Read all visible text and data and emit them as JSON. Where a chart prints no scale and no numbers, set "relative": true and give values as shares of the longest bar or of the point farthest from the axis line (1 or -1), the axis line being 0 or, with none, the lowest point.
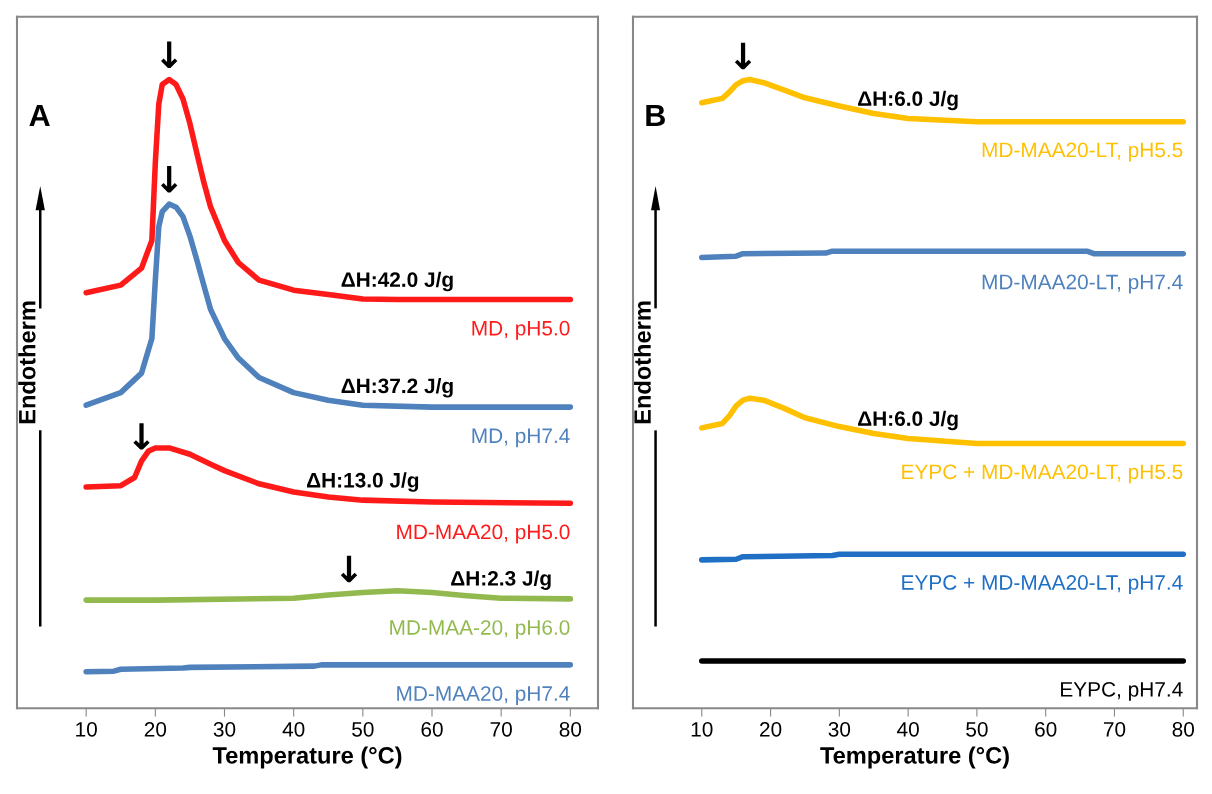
{
  "chart_data": [
    {
      "type": "line",
      "title": "A",
      "xlabel": "Temperature (°C)",
      "ylabel": "Endotherm",
      "relative": true,
      "xlim": [
        0,
        84
      ],
      "xticks": [
        10,
        20,
        30,
        40,
        50,
        60,
        70,
        80
      ],
      "tick_labels": "x",
      "legend": false,
      "grid": false,
      "marker": "none",
      "line_style": "solid",
      "series": [
        {
          "name": "MD, pH5.0",
          "color": "#ff1a1a",
          "x": [
            10,
            15,
            18,
            19.5,
            20,
            20.5,
            21,
            22,
            23,
            24,
            25,
            26,
            27,
            28,
            30,
            32,
            35,
            40,
            45,
            50,
            55,
            60,
            80
          ],
          "values": [
            0.661,
            0.673,
            0.7,
            0.744,
            0.868,
            0.961,
            0.992,
            1.0,
            0.992,
            0.969,
            0.93,
            0.883,
            0.837,
            0.797,
            0.744,
            0.709,
            0.681,
            0.665,
            0.658,
            0.651,
            0.65,
            0.65,
            0.65
          ]
        },
        {
          "name": "MD, pH7.4",
          "color": "#4f81bd",
          "x": [
            10,
            15,
            18,
            19.5,
            20,
            20.5,
            21,
            22,
            23,
            24,
            25,
            26,
            27,
            28,
            30,
            32,
            35,
            40,
            45,
            50,
            60,
            80
          ],
          "values": [
            0.482,
            0.502,
            0.533,
            0.588,
            0.681,
            0.766,
            0.79,
            0.802,
            0.797,
            0.782,
            0.751,
            0.713,
            0.673,
            0.634,
            0.588,
            0.557,
            0.526,
            0.502,
            0.49,
            0.482,
            0.479,
            0.479
          ]
        },
        {
          "name": "MD-MAA20, pH5.0",
          "color": "#ff1a1a",
          "x": [
            10,
            15,
            17,
            18,
            19,
            20,
            22,
            25,
            28,
            30,
            35,
            40,
            45,
            50,
            60,
            80
          ],
          "values": [
            0.352,
            0.354,
            0.367,
            0.393,
            0.409,
            0.414,
            0.414,
            0.404,
            0.388,
            0.378,
            0.357,
            0.344,
            0.336,
            0.331,
            0.328,
            0.326
          ]
        },
        {
          "name": "MD-MAA-20, pH6.0",
          "color": "#92b94e",
          "x": [
            10,
            20,
            40,
            45,
            50,
            55,
            60,
            65,
            70,
            80
          ],
          "values": [
            0.172,
            0.172,
            0.175,
            0.18,
            0.184,
            0.187,
            0.184,
            0.179,
            0.175,
            0.174
          ]
        },
        {
          "name": "MD-MAA20, pH7.4",
          "color": "#4f81bd",
          "x": [
            10,
            14,
            15,
            24,
            25,
            43,
            44,
            80
          ],
          "values": [
            0.058,
            0.059,
            0.062,
            0.064,
            0.065,
            0.067,
            0.069,
            0.069
          ]
        }
      ],
      "annotations": [
        {
          "text": "ΔH:42.0 J/g",
          "x": 55,
          "y": 0.65
        },
        {
          "text": "ΔH:37.2 J/g",
          "x": 55,
          "y": 0.481
        },
        {
          "text": "ΔH:13.0 J/g",
          "x": 50,
          "y": 0.331
        },
        {
          "text": "ΔH:2.3 J/g",
          "x": 70,
          "y": 0.175
        },
        {
          "text": "↓",
          "x": 22,
          "y": 1.0
        },
        {
          "text": "↓",
          "x": 22,
          "y": 0.802
        },
        {
          "text": "↓",
          "x": 18,
          "y": 0.393
        },
        {
          "text": "↓",
          "x": 48,
          "y": 0.182
        }
      ]
    },
    {
      "type": "line",
      "title": "B",
      "xlabel": "Temperature (°C)",
      "ylabel": "Endotherm",
      "relative": true,
      "xlim": [
        0,
        82
      ],
      "xticks": [
        10,
        20,
        30,
        40,
        50,
        60,
        70,
        80
      ],
      "tick_labels": "x",
      "legend": false,
      "grid": false,
      "marker": "none",
      "line_style": "solid",
      "series": [
        {
          "name": "MD-MAA20-LT, pH5.5",
          "color": "#ffc000",
          "x": [
            10,
            13,
            14,
            15,
            16,
            17,
            19,
            22,
            25,
            30,
            35,
            40,
            50,
            60,
            80
          ],
          "values": [
            0.963,
            0.97,
            0.98,
            0.992,
            0.998,
            1.0,
            0.995,
            0.983,
            0.971,
            0.958,
            0.946,
            0.938,
            0.933,
            0.933,
            0.933
          ]
        },
        {
          "name": "MD-MAA20-LT, pH7.4",
          "color": "#4f81bd",
          "x": [
            10,
            15,
            16,
            28,
            29,
            66,
            67,
            80
          ],
          "values": [
            0.717,
            0.719,
            0.723,
            0.724,
            0.727,
            0.727,
            0.723,
            0.723
          ]
        },
        {
          "name": "EYPC + MD-MAA20-LT, pH5.5",
          "color": "#ffc000",
          "x": [
            10,
            13,
            14,
            15,
            16,
            17,
            19,
            22,
            25,
            30,
            35,
            40,
            50,
            80
          ],
          "values": [
            0.446,
            0.453,
            0.465,
            0.481,
            0.49,
            0.493,
            0.49,
            0.477,
            0.462,
            0.448,
            0.437,
            0.429,
            0.421,
            0.421
          ]
        },
        {
          "name": "EYPC + MD-MAA20-LT, pH7.4",
          "color": "#1f6fc5",
          "x": [
            10,
            15,
            16,
            29,
            30,
            80
          ],
          "values": [
            0.236,
            0.237,
            0.241,
            0.243,
            0.245,
            0.245
          ]
        },
        {
          "name": "EYPC, pH7.4",
          "color": "#000000",
          "x": [
            10,
            80
          ],
          "values": [
            0.075,
            0.075
          ]
        }
      ],
      "annotations": [
        {
          "text": "ΔH:6.0 J/g",
          "x": 40,
          "y": 0.938
        },
        {
          "text": "ΔH:6.0 J/g",
          "x": 40,
          "y": 0.429
        },
        {
          "text": "↓",
          "x": 16,
          "y": 0.998
        }
      ]
    }
  ]
}
